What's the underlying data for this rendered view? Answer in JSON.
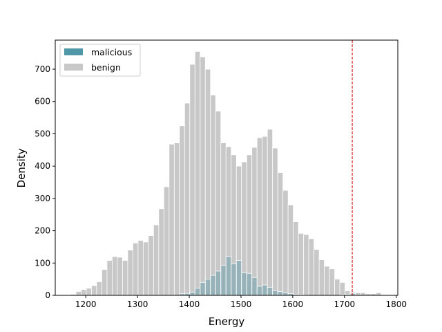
{
  "chart_data": {
    "type": "histogram",
    "xlabel": "Energy",
    "ylabel": "Density",
    "xlim": [
      1141,
      1803
    ],
    "ylim": [
      0,
      790
    ],
    "xticks": [
      1200,
      1300,
      1400,
      1500,
      1600,
      1700,
      1800
    ],
    "yticks": [
      0,
      100,
      200,
      300,
      400,
      500,
      600,
      700
    ],
    "bin_width": 10,
    "threshold": {
      "x": 1715,
      "color": "#d62728",
      "style": "dashed"
    },
    "legend": {
      "placement": "upper-left"
    },
    "series": [
      {
        "name": "benign",
        "color": "#c8c8c8",
        "bin_starts": [
          1171,
          1181,
          1191,
          1201,
          1211,
          1221,
          1231,
          1241,
          1251,
          1261,
          1271,
          1281,
          1291,
          1301,
          1311,
          1321,
          1331,
          1341,
          1351,
          1361,
          1371,
          1381,
          1391,
          1401,
          1411,
          1421,
          1431,
          1441,
          1451,
          1461,
          1471,
          1481,
          1491,
          1501,
          1511,
          1521,
          1531,
          1541,
          1551,
          1561,
          1571,
          1581,
          1591,
          1601,
          1611,
          1621,
          1631,
          1641,
          1651,
          1661,
          1671,
          1681,
          1691,
          1701,
          1711,
          1721,
          1731,
          1741,
          1751,
          1761
        ],
        "values": [
          3,
          12,
          18,
          22,
          30,
          42,
          80,
          108,
          120,
          118,
          108,
          140,
          162,
          170,
          165,
          185,
          218,
          268,
          336,
          468,
          472,
          525,
          595,
          715,
          755,
          738,
          700,
          620,
          570,
          472,
          460,
          435,
          400,
          413,
          435,
          458,
          488,
          492,
          514,
          456,
          380,
          325,
          280,
          228,
          192,
          188,
          175,
          142,
          110,
          90,
          82,
          50,
          40,
          14,
          10,
          8,
          8,
          5,
          5,
          8
        ]
      },
      {
        "name": "malicious",
        "color": "#3d8c9e",
        "bin_starts": [
          1381,
          1391,
          1401,
          1411,
          1421,
          1431,
          1441,
          1451,
          1461,
          1471,
          1481,
          1491,
          1501,
          1511,
          1521,
          1531,
          1541,
          1551,
          1561,
          1571,
          1581,
          1591,
          1601,
          1611,
          1621,
          1691,
          1701,
          1711
        ],
        "values": [
          5,
          6,
          10,
          22,
          40,
          50,
          62,
          75,
          93,
          120,
          98,
          108,
          70,
          68,
          55,
          28,
          32,
          25,
          15,
          12,
          8,
          5,
          3,
          2,
          1,
          2,
          3,
          5
        ]
      }
    ]
  }
}
